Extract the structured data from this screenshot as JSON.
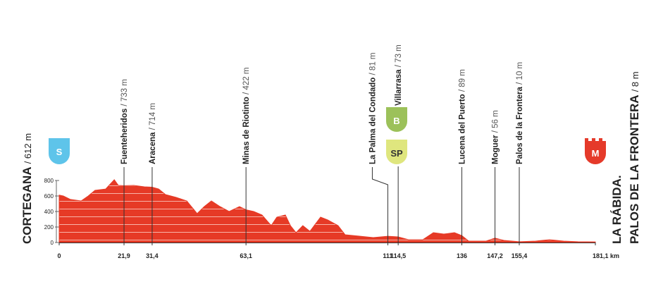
{
  "chart_data": {
    "type": "area",
    "x": [
      0,
      1.4,
      3.8,
      7.4,
      9.8,
      12.1,
      15.7,
      18.6,
      20,
      21.9,
      25.2,
      28.8,
      31.4,
      33.6,
      35.9,
      39.5,
      43.1,
      46.6,
      49,
      51.4,
      54.3,
      57.4,
      60.9,
      63.1,
      65.7,
      68.5,
      71.6,
      73.5,
      76.4,
      78.1,
      80,
      82.3,
      84.7,
      88.3,
      90.7,
      94.2,
      96.6,
      101.4,
      106.1,
      111,
      114.5,
      118,
      122.8,
      126.4,
      129.9,
      133.5,
      136,
      138.3,
      144.2,
      147.2,
      150.2,
      155.4,
      160.9,
      165.6,
      170.4,
      175.2,
      181.1
    ],
    "values": [
      612,
      600,
      555,
      536,
      600,
      673,
      690,
      810,
      736,
      733,
      736,
      718,
      714,
      690,
      618,
      582,
      536,
      373,
      464,
      536,
      464,
      400,
      464,
      422,
      400,
      355,
      218,
      327,
      355,
      218,
      127,
      218,
      145,
      327,
      291,
      218,
      100,
      82,
      64,
      81,
      73,
      36,
      36,
      127,
      109,
      127,
      89,
      18,
      18,
      56,
      27,
      10,
      18,
      36,
      18,
      10,
      8
    ],
    "color": "#e63a26",
    "xlim": [
      0,
      181.1
    ],
    "ylim": [
      0,
      800
    ],
    "yticks": [
      0,
      200,
      400,
      600,
      800
    ],
    "xticks": [
      0,
      {
        "value": 21.9,
        "label": "21,9"
      },
      {
        "value": 31.4,
        "label": "31,4"
      },
      {
        "value": 63.1,
        "label": "63,1"
      },
      111,
      {
        "value": 114.5,
        "label": "114,5"
      },
      136,
      {
        "value": 147.2,
        "label": "147,2"
      },
      {
        "value": 155.4,
        "label": "155,4"
      },
      {
        "value": 181.1,
        "label": "181,1 km"
      }
    ],
    "annotations": [
      {
        "x": 21.9,
        "name": "Fuenteheridos",
        "detail": "/ 733 m"
      },
      {
        "x": 31.4,
        "name": "Aracena",
        "detail": "/ 714 m"
      },
      {
        "x": 63.1,
        "name": "Minas de Riotinto",
        "detail": "/ 422 m"
      },
      {
        "x": 111,
        "name": "La Palma del Condado",
        "detail": "/ 81 m"
      },
      {
        "x": 114.5,
        "name": "Villarrasa",
        "detail": "/ 73 m"
      },
      {
        "x": 136,
        "name": "Lucena del Puerto",
        "detail": "/ 89 m"
      },
      {
        "x": 147.2,
        "name": "Moguer",
        "detail": "/ 56 m"
      },
      {
        "x": 155.4,
        "name": "Palos de la Frontera",
        "detail": "/ 10 m"
      }
    ],
    "start": {
      "name": "CORTEGANA",
      "detail": "/ 612 m"
    },
    "finish": {
      "line1": "LA RÁBIDA.",
      "line2": "PALOS DE LA FRONTERA",
      "detail": "/ 8 m"
    },
    "badges": {
      "start": "S",
      "climb": "B",
      "sprint": "SP",
      "finish": "M"
    }
  }
}
